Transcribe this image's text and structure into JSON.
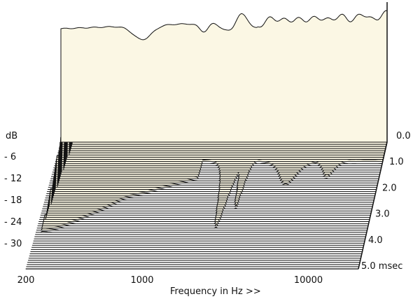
{
  "chart_data": {
    "type": "area",
    "title": "",
    "xlabel": "Frequency in Hz >>",
    "ylabel": "dB",
    "zlabel_unit": "msec",
    "x_scale": "log",
    "xlim": [
      200,
      20000
    ],
    "x_ticks": [
      {
        "value": 200,
        "label": "200"
      },
      {
        "value": 1000,
        "label": "1000"
      },
      {
        "value": 10000,
        "label": "10000"
      }
    ],
    "y_ticks": [
      {
        "value": -6,
        "label": "- 6"
      },
      {
        "value": -12,
        "label": "- 12"
      },
      {
        "value": -18,
        "label": "- 18"
      },
      {
        "value": -24,
        "label": "- 24"
      },
      {
        "value": -30,
        "label": "- 30"
      }
    ],
    "time_ticks": [
      {
        "value": 0.0,
        "label": "0.0"
      },
      {
        "value": 1.0,
        "label": "1.0"
      },
      {
        "value": 2.0,
        "label": "2.0"
      },
      {
        "value": 3.0,
        "label": "3.0"
      },
      {
        "value": 4.0,
        "label": "4.0"
      },
      {
        "value": 5.0,
        "label": "5.0"
      }
    ],
    "time_range_msec": [
      0,
      5.0
    ],
    "slice_count": 60,
    "fill_color": "#fbf7e4",
    "line_color": "#111111"
  }
}
